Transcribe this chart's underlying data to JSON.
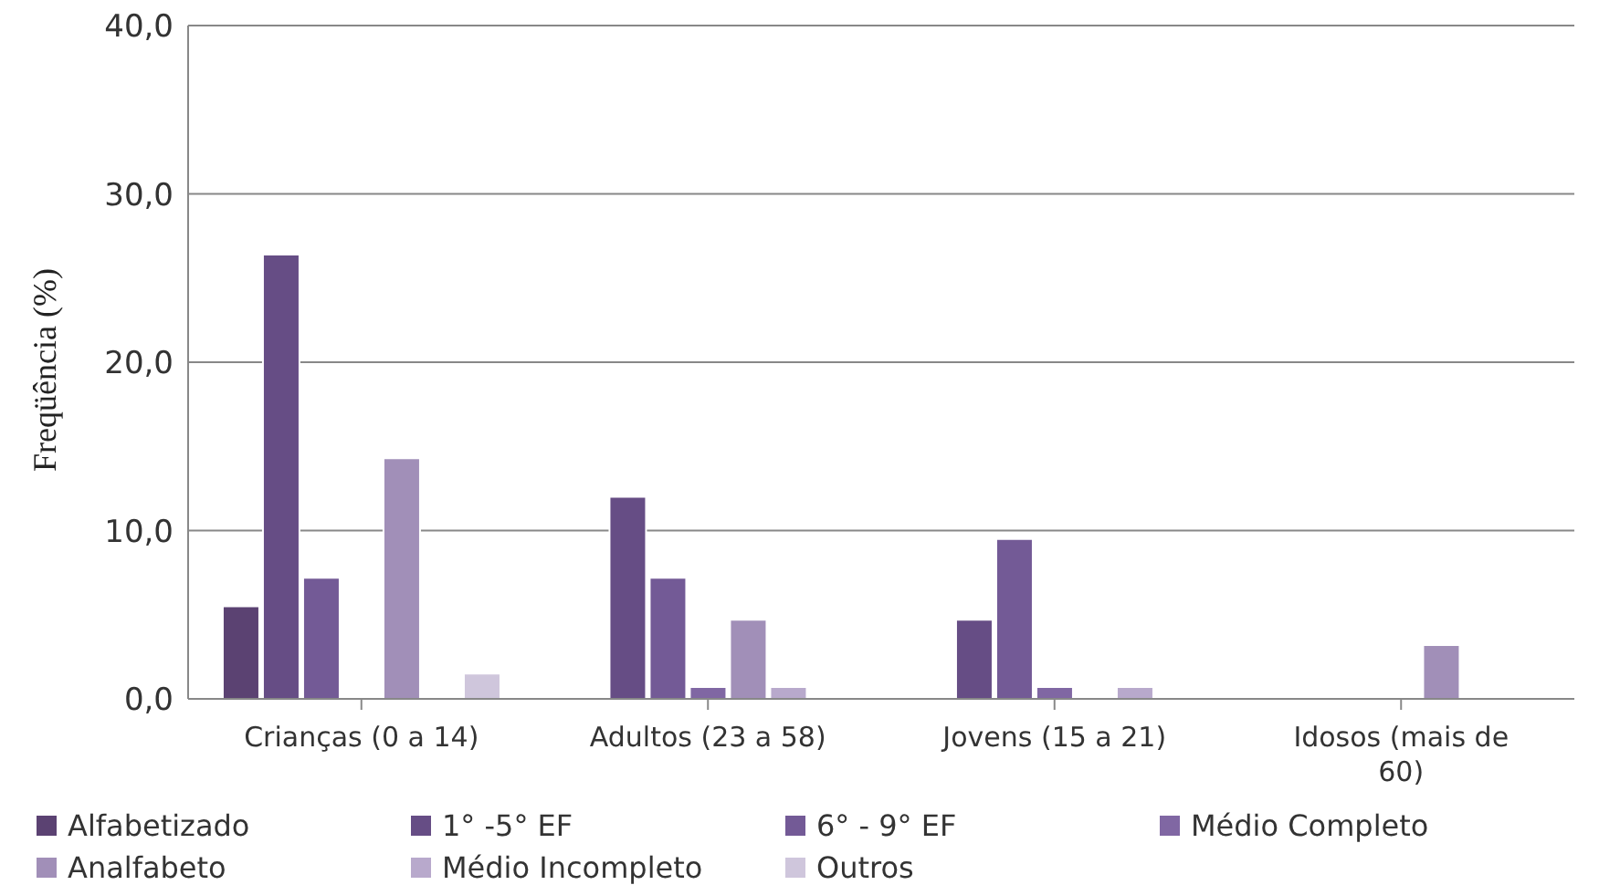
{
  "chart_data": {
    "type": "bar",
    "ylabel": "Freqüência (%)",
    "categories": [
      "Crianças (0 a 14)",
      "Adultos (23 a 58)",
      "Jovens (15 a 21)",
      "Idosos (mais de 60)"
    ],
    "series": [
      {
        "name": "Alfabetizado",
        "color": "#5b4272",
        "values": [
          5.5,
          0,
          0,
          0
        ]
      },
      {
        "name": "1° -5° EF",
        "color": "#664d85",
        "values": [
          26.4,
          12.0,
          4.7,
          0
        ]
      },
      {
        "name": "6° - 9° EF",
        "color": "#735a96",
        "values": [
          7.2,
          7.2,
          9.5,
          0
        ]
      },
      {
        "name": "Médio Completo",
        "color": "#8067a3",
        "values": [
          0,
          0.7,
          0.7,
          0
        ]
      },
      {
        "name": "Analfabeto",
        "color": "#a18fb8",
        "values": [
          14.3,
          4.7,
          0,
          3.2
        ]
      },
      {
        "name": "Médio Incompleto",
        "color": "#b8a9cc",
        "values": [
          0,
          0.7,
          0.7,
          0
        ]
      },
      {
        "name": "Outros",
        "color": "#cfc6dc",
        "values": [
          1.5,
          0,
          0,
          0
        ]
      }
    ],
    "ylim": [
      0,
      40
    ],
    "yticks": [
      {
        "value": 0,
        "label": "0,0"
      },
      {
        "value": 10,
        "label": "10,0"
      },
      {
        "value": 20,
        "label": "20,0"
      },
      {
        "value": 30,
        "label": "30,0"
      },
      {
        "value": 40,
        "label": "40,0"
      }
    ],
    "grid": "y",
    "legend": "bottom"
  }
}
